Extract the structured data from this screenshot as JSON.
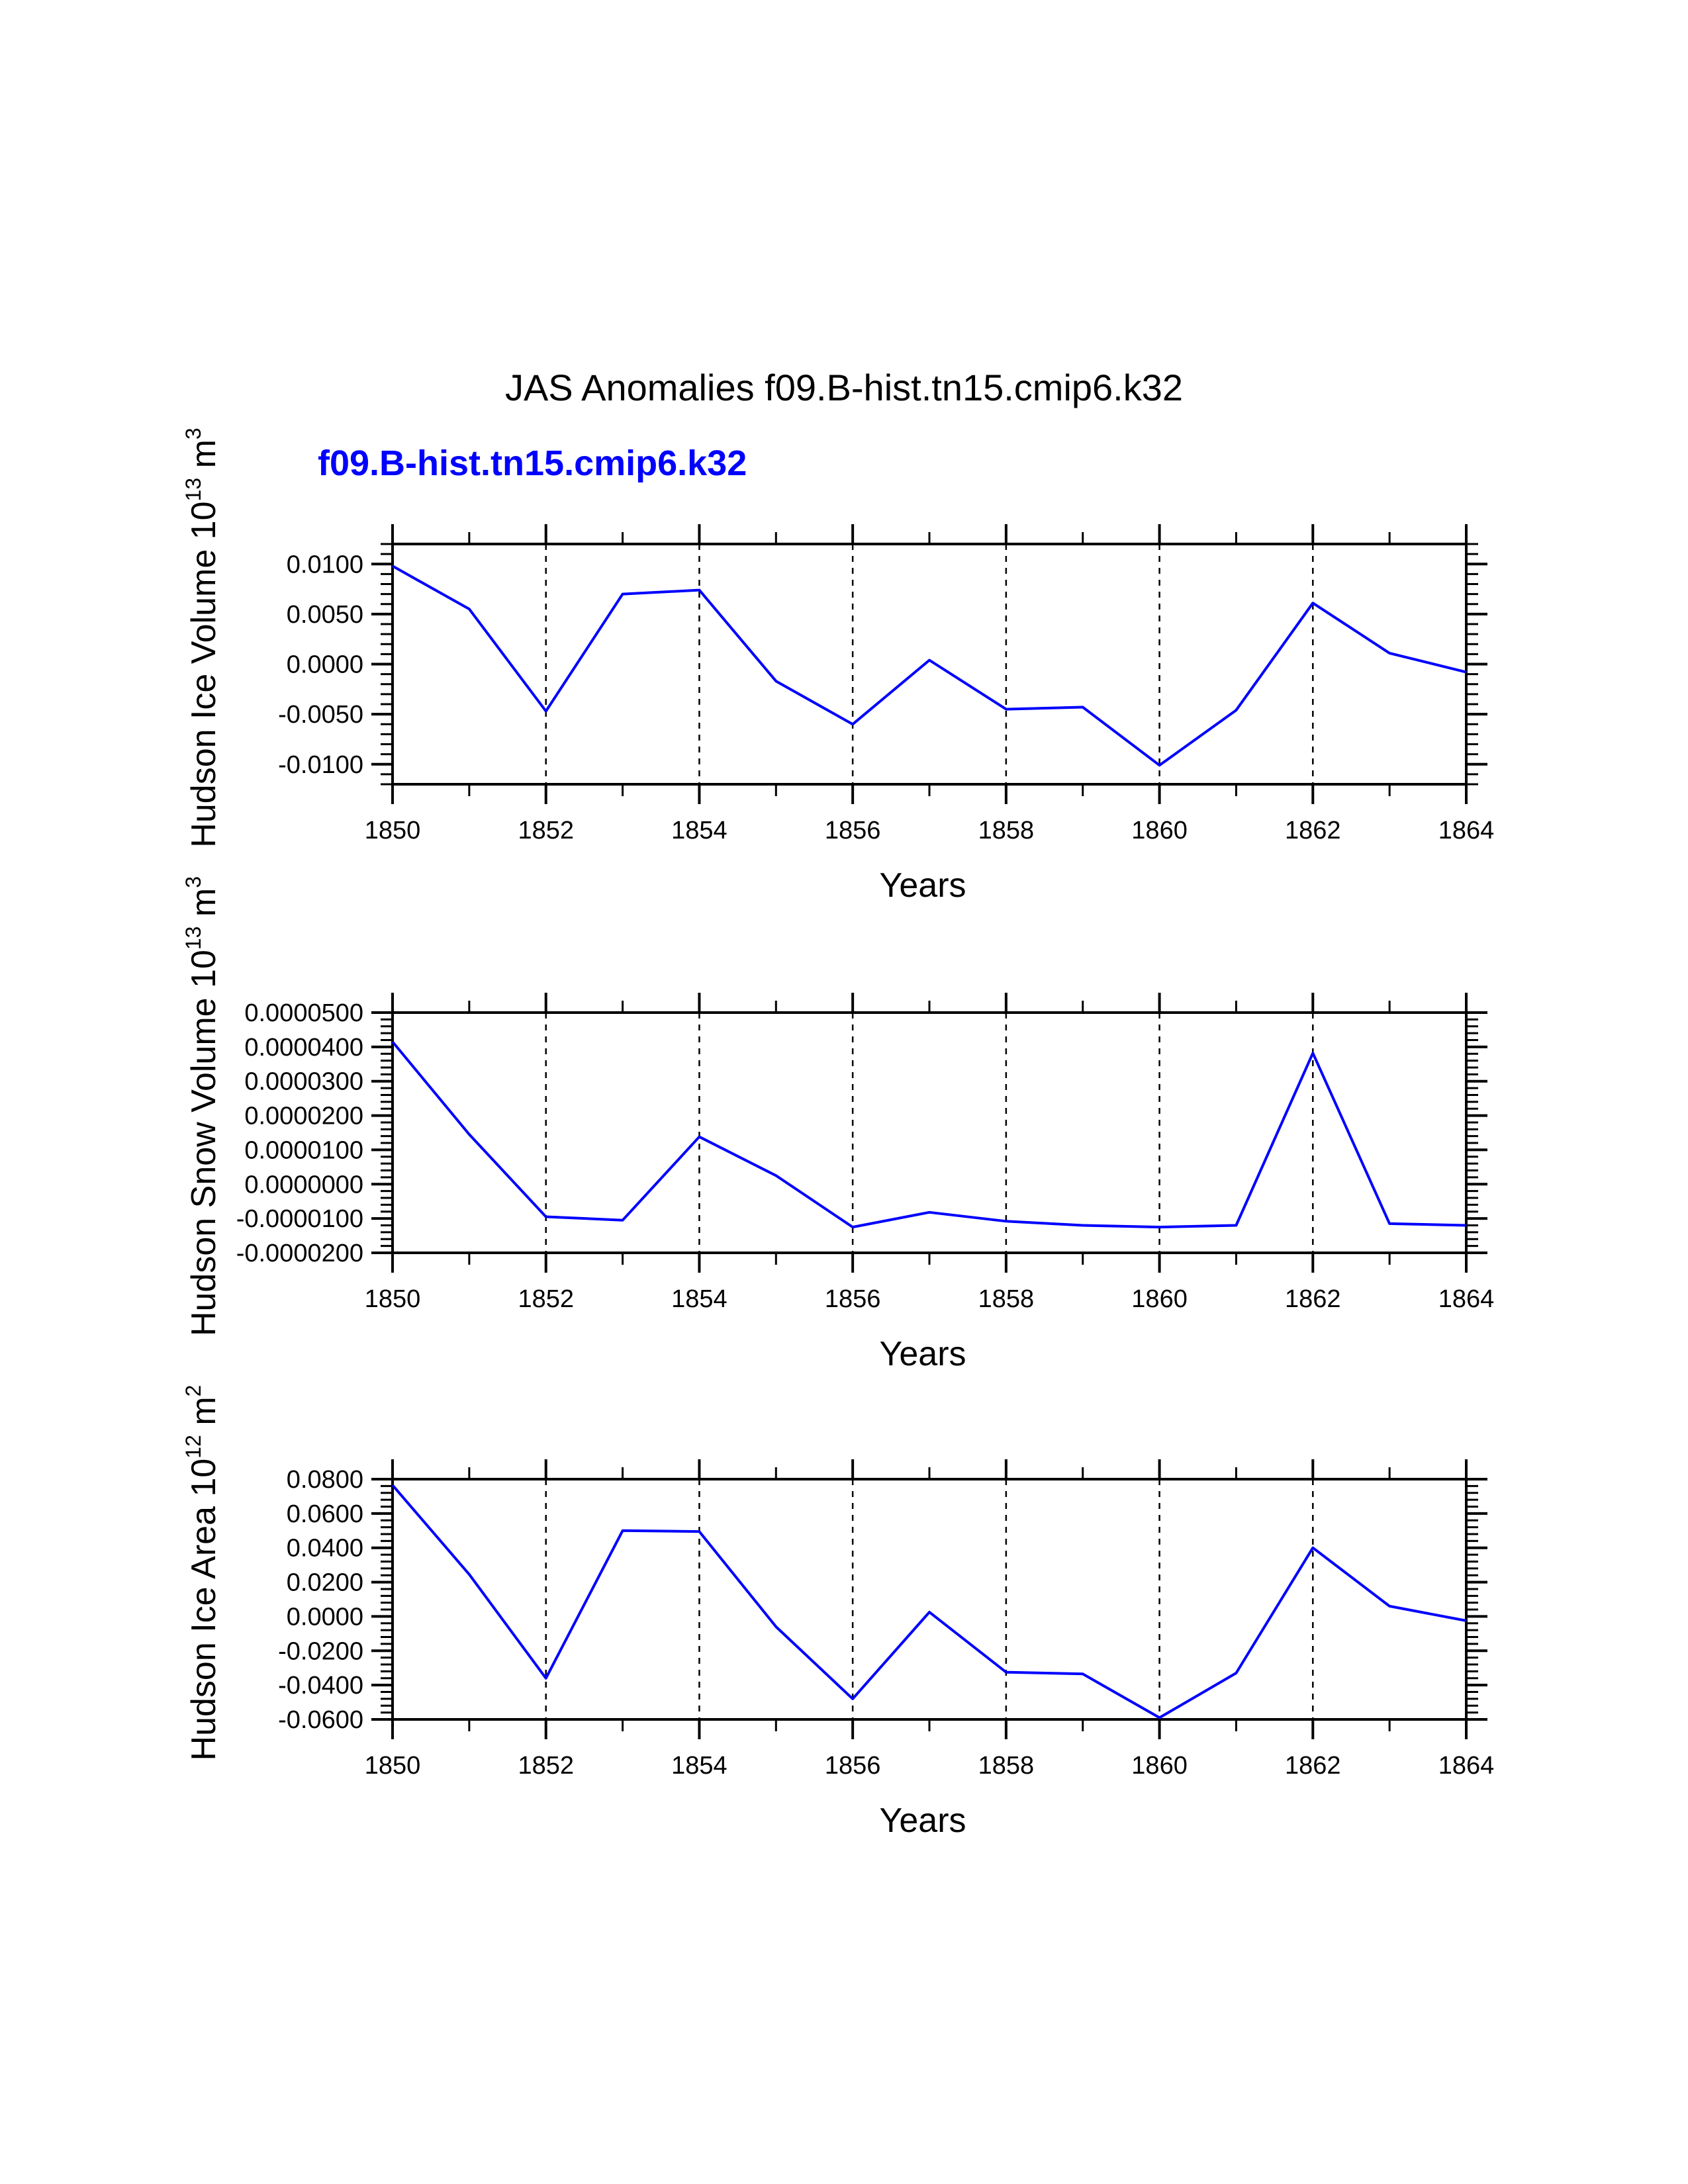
{
  "title": "JAS Anomalies f09.B-hist.tn15.cmip6.k32",
  "subtitle": "f09.B-hist.tn15.cmip6.k32",
  "colors": {
    "series": "#0000ff",
    "axes": "#000000",
    "grid": "#000000"
  },
  "chart_data": [
    {
      "type": "line",
      "ylabel": {
        "text": "Hudson Ice Volume 10",
        "sup": "13",
        "unit_text": " m",
        "unit_sup": "3"
      },
      "xlabel": "Years",
      "xlim": [
        1850,
        1864
      ],
      "ylim": [
        -0.012,
        0.012
      ],
      "x_major_ticks": [
        1850,
        1852,
        1854,
        1856,
        1858,
        1860,
        1862,
        1864
      ],
      "x_tick_labels": [
        "1850",
        "1852",
        "1854",
        "1856",
        "1858",
        "1860",
        "1862",
        "1864"
      ],
      "y_major_ticks": [
        -0.01,
        -0.005,
        0,
        0.005,
        0.01
      ],
      "y_tick_labels": [
        "-0.0100",
        "-0.0050",
        "0.0000",
        "0.0050",
        "0.0100"
      ],
      "y_minor_step": 0.001,
      "grid": "dashed vertical lines at 1852, 1854, 1856, 1858, 1860, 1862",
      "series": [
        {
          "name": "f09.B-hist.tn15.cmip6.k32",
          "x": [
            1850,
            1851,
            1852,
            1853,
            1854,
            1855,
            1856,
            1857,
            1858,
            1859,
            1860,
            1861,
            1862,
            1863,
            1864
          ],
          "values": [
            0.0098,
            0.0055,
            -0.0047,
            0.007,
            0.0074,
            -0.0017,
            -0.006,
            0.0004,
            -0.0045,
            -0.0043,
            -0.0101,
            -0.0046,
            0.0061,
            0.0011,
            -0.0008
          ]
        }
      ]
    },
    {
      "type": "line",
      "ylabel": {
        "text": "Hudson Snow Volume 10",
        "sup": "13",
        "unit_text": " m",
        "unit_sup": "3"
      },
      "xlabel": "Years",
      "xlim": [
        1850,
        1864
      ],
      "ylim": [
        -2e-05,
        5e-05
      ],
      "x_major_ticks": [
        1850,
        1852,
        1854,
        1856,
        1858,
        1860,
        1862,
        1864
      ],
      "x_tick_labels": [
        "1850",
        "1852",
        "1854",
        "1856",
        "1858",
        "1860",
        "1862",
        "1864"
      ],
      "y_major_ticks": [
        -2e-05,
        -1e-05,
        0,
        1e-05,
        2e-05,
        3e-05,
        4e-05,
        5e-05
      ],
      "y_tick_labels": [
        "-0.0000200",
        "-0.0000100",
        "0.0000000",
        "0.0000100",
        "0.0000200",
        "0.0000300",
        "0.0000400",
        "0.0000500"
      ],
      "y_minor_step": 2e-06,
      "grid": "dashed vertical lines at 1852, 1854, 1856, 1858, 1860, 1862",
      "series": [
        {
          "name": "f09.B-hist.tn15.cmip6.k32",
          "x": [
            1850,
            1851,
            1852,
            1853,
            1854,
            1855,
            1856,
            1857,
            1858,
            1859,
            1860,
            1861,
            1862,
            1863,
            1864
          ],
          "values": [
            4.15e-05,
            1.45e-05,
            -9.5e-06,
            -1.05e-05,
            1.38e-05,
            2.5e-06,
            -1.25e-05,
            -8.2e-06,
            -1.08e-05,
            -1.2e-05,
            -1.25e-05,
            -1.2e-05,
            3.82e-05,
            -1.15e-05,
            -1.2e-05
          ]
        }
      ]
    },
    {
      "type": "line",
      "ylabel": {
        "text": "Hudson Ice Area 10",
        "sup": "12",
        "unit_text": " m",
        "unit_sup": "2"
      },
      "xlabel": "Years",
      "xlim": [
        1850,
        1864
      ],
      "ylim": [
        -0.06,
        0.08
      ],
      "x_major_ticks": [
        1850,
        1852,
        1854,
        1856,
        1858,
        1860,
        1862,
        1864
      ],
      "x_tick_labels": [
        "1850",
        "1852",
        "1854",
        "1856",
        "1858",
        "1860",
        "1862",
        "1864"
      ],
      "y_major_ticks": [
        -0.06,
        -0.04,
        -0.02,
        0,
        0.02,
        0.04,
        0.06,
        0.08
      ],
      "y_tick_labels": [
        "-0.0600",
        "-0.0400",
        "-0.0200",
        "0.0000",
        "0.0200",
        "0.0400",
        "0.0600",
        "0.0800"
      ],
      "y_minor_step": 0.004,
      "grid": "dashed vertical lines at 1852, 1854, 1856, 1858, 1860, 1862",
      "series": [
        {
          "name": "f09.B-hist.tn15.cmip6.k32",
          "x": [
            1850,
            1851,
            1852,
            1853,
            1854,
            1855,
            1856,
            1857,
            1858,
            1859,
            1860,
            1861,
            1862,
            1863,
            1864
          ],
          "values": [
            0.0765,
            0.0245,
            -0.036,
            0.05,
            0.0495,
            -0.006,
            -0.048,
            0.0025,
            -0.0325,
            -0.0335,
            -0.059,
            -0.033,
            0.04,
            0.006,
            -0.0025
          ]
        }
      ]
    }
  ]
}
